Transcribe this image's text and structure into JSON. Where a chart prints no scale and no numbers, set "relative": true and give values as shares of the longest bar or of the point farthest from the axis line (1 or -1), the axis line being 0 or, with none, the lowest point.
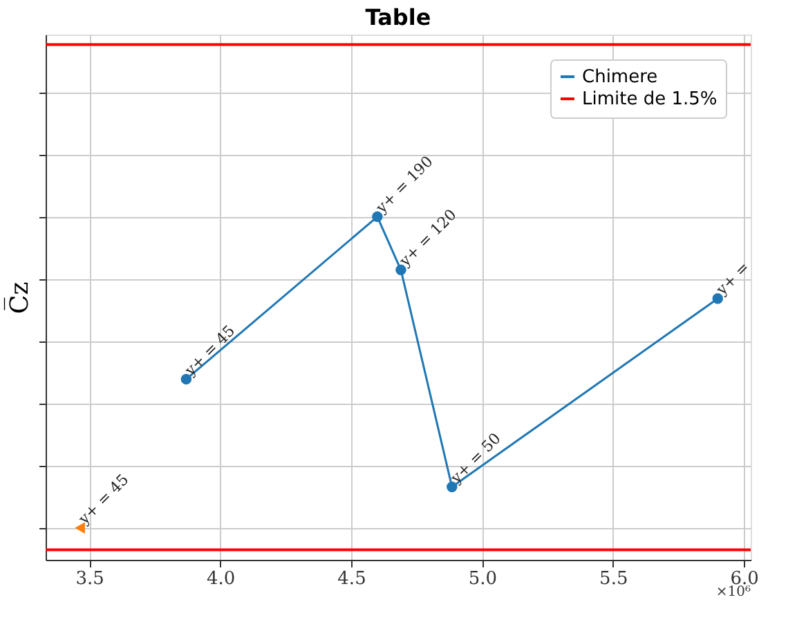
{
  "chart_data": {
    "type": "line",
    "title": "Table",
    "ylabel": "C̅z",
    "relative": true,
    "xlim": [
      3.333,
      6.026
    ],
    "xticks": [
      3.5,
      {
        "value": 4,
        "label": "4.0"
      },
      4.5,
      {
        "value": 5,
        "label": "5.0"
      },
      5.5,
      {
        "value": 6,
        "label": "6.0"
      }
    ],
    "series": [
      {
        "name": "Chimere",
        "type": "line",
        "marker": "circle",
        "color": "#1f77b4",
        "x": [
          3.87,
          4.6,
          4.69,
          4.885,
          5.9
        ],
        "values": [
          0.478,
          1.0,
          0.829,
          0.132,
          0.737
        ]
      },
      {
        "type": "scatter",
        "marker": "triangle",
        "color": "#ff7f0e",
        "x": [
          3.464
        ],
        "values": [
          0.0
        ]
      }
    ],
    "ref_lines": [
      {
        "axis": "y",
        "value": 1.553,
        "label": "Limite de 1.5%",
        "color": "#ff0000"
      },
      {
        "axis": "y",
        "value": -0.07,
        "color": "#ff0000"
      }
    ],
    "annotations": [
      {
        "text": "y+ = 45",
        "x": 3.87,
        "y": 0.478
      },
      {
        "text": "y+ = 190",
        "x": 4.6,
        "y": 1.0
      },
      {
        "text": "y+ = 120",
        "x": 4.69,
        "y": 0.829
      },
      {
        "text": "y+ = 50",
        "x": 4.885,
        "y": 0.132
      },
      {
        "text": "y+ =",
        "x": 5.9,
        "y": 0.737
      },
      {
        "text": "y+ = 45",
        "x": 3.464,
        "y": 0.0
      },
      "×10⁶"
    ],
    "grid": true,
    "legend": "top right"
  }
}
